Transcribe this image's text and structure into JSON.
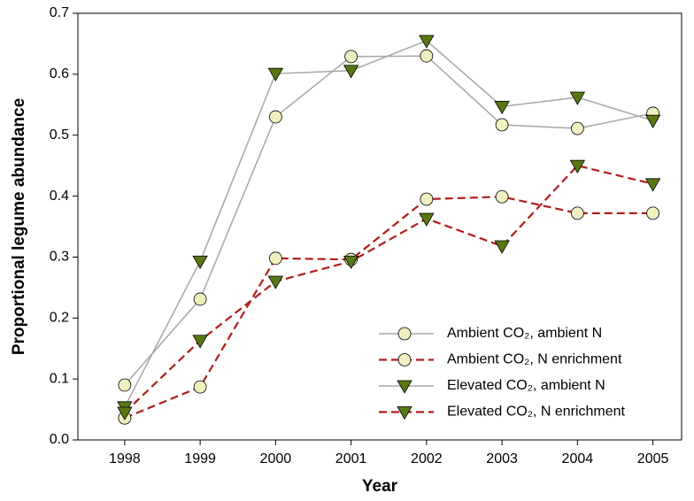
{
  "chart_data": {
    "type": "line",
    "x_label": "Year",
    "y_label": "Proportional legume abundance",
    "x": [
      1998,
      1999,
      2000,
      2001,
      2002,
      2003,
      2004,
      2005
    ],
    "xlim": [
      1997.38,
      2005.38
    ],
    "xticks": [
      1998,
      1999,
      2000,
      2001,
      2002,
      2003,
      2004,
      2005
    ],
    "ylim": [
      0,
      0.7
    ],
    "yticks": [
      {
        "value": 0,
        "label": "0.0"
      },
      0.1,
      0.2,
      0.3,
      0.4,
      0.5,
      0.6,
      0.7
    ],
    "legend": "lower right",
    "series": [
      {
        "name": "Ambient CO₂, ambient N",
        "color": "#a6a6a6",
        "dashed": false,
        "marker": "circle",
        "marker_color": "#efefbf",
        "values": [
          0.09,
          0.231,
          0.53,
          0.629,
          0.63,
          0.517,
          0.511,
          0.536
        ]
      },
      {
        "name": "Ambient CO₂, N enrichment",
        "color": "#b01c1c",
        "dashed": true,
        "marker": "circle",
        "marker_color": "#efefbf",
        "values": [
          0.036,
          0.087,
          0.298,
          0.296,
          0.395,
          0.399,
          0.372,
          0.372
        ]
      },
      {
        "name": "Elevated CO₂, ambient N",
        "color": "#a6a6a6",
        "dashed": false,
        "marker": "triangle",
        "marker_color": "#5a7812",
        "values": [
          0.054,
          0.293,
          0.601,
          0.606,
          0.655,
          0.547,
          0.562,
          0.524
        ]
      },
      {
        "name": "Elevated CO₂, N enrichment",
        "color": "#b01c1c",
        "dashed": true,
        "marker": "triangle",
        "marker_color": "#5a7812",
        "values": [
          0.045,
          0.163,
          0.26,
          0.293,
          0.363,
          0.318,
          0.45,
          0.42
        ]
      }
    ]
  }
}
